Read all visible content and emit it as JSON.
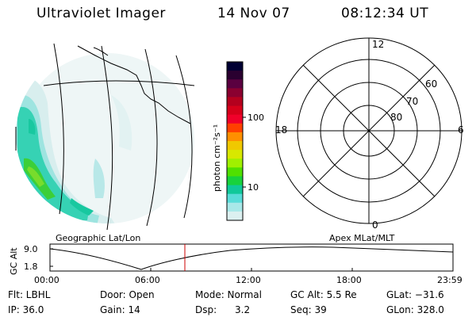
{
  "header": {
    "instrument": "Ultraviolet Imager",
    "date": "14 Nov 07",
    "time": "08:12:34 UT"
  },
  "colorbar": {
    "unit_label": "photon cm⁻²s⁻¹",
    "ticks": [
      "100",
      "10"
    ],
    "colors": [
      "#000033",
      "#2a0030",
      "#5a0040",
      "#8a0030",
      "#b4001e",
      "#d6001a",
      "#f0002a",
      "#ff4000",
      "#ff9000",
      "#f0c800",
      "#d8e800",
      "#a0f000",
      "#50e000",
      "#18d23c",
      "#10c89a",
      "#58dcd8",
      "#a8e8e8",
      "#dcf0f0"
    ]
  },
  "map_panel": {
    "label": "Geographic Lat/Lon"
  },
  "polar_panel": {
    "label": "Apex MLat/MLT",
    "mlt_labels": {
      "top": "12",
      "left": "18",
      "right": "6",
      "bottom": "0"
    },
    "lat_labels": [
      "60",
      "70",
      "80"
    ]
  },
  "altitude_plot": {
    "ylabel": "GC Alt",
    "yticks": [
      "9.0",
      "1.8"
    ],
    "xticks": [
      "00:00",
      "06:00",
      "12:00",
      "18:00",
      "23:59"
    ],
    "marker_color": "#cc0000"
  },
  "info": {
    "flt": "Flt: LBHL",
    "ip": "IP: 36.0",
    "door": "Door: Open",
    "gain": "Gain: 14",
    "mode": "Mode: Normal",
    "dsp": "Dsp:      3.2",
    "gcalt": "GC Alt: 5.5 Re",
    "seq": "Seq: 39",
    "glat": "GLat: −31.6",
    "glon": "GLon: 328.0"
  }
}
